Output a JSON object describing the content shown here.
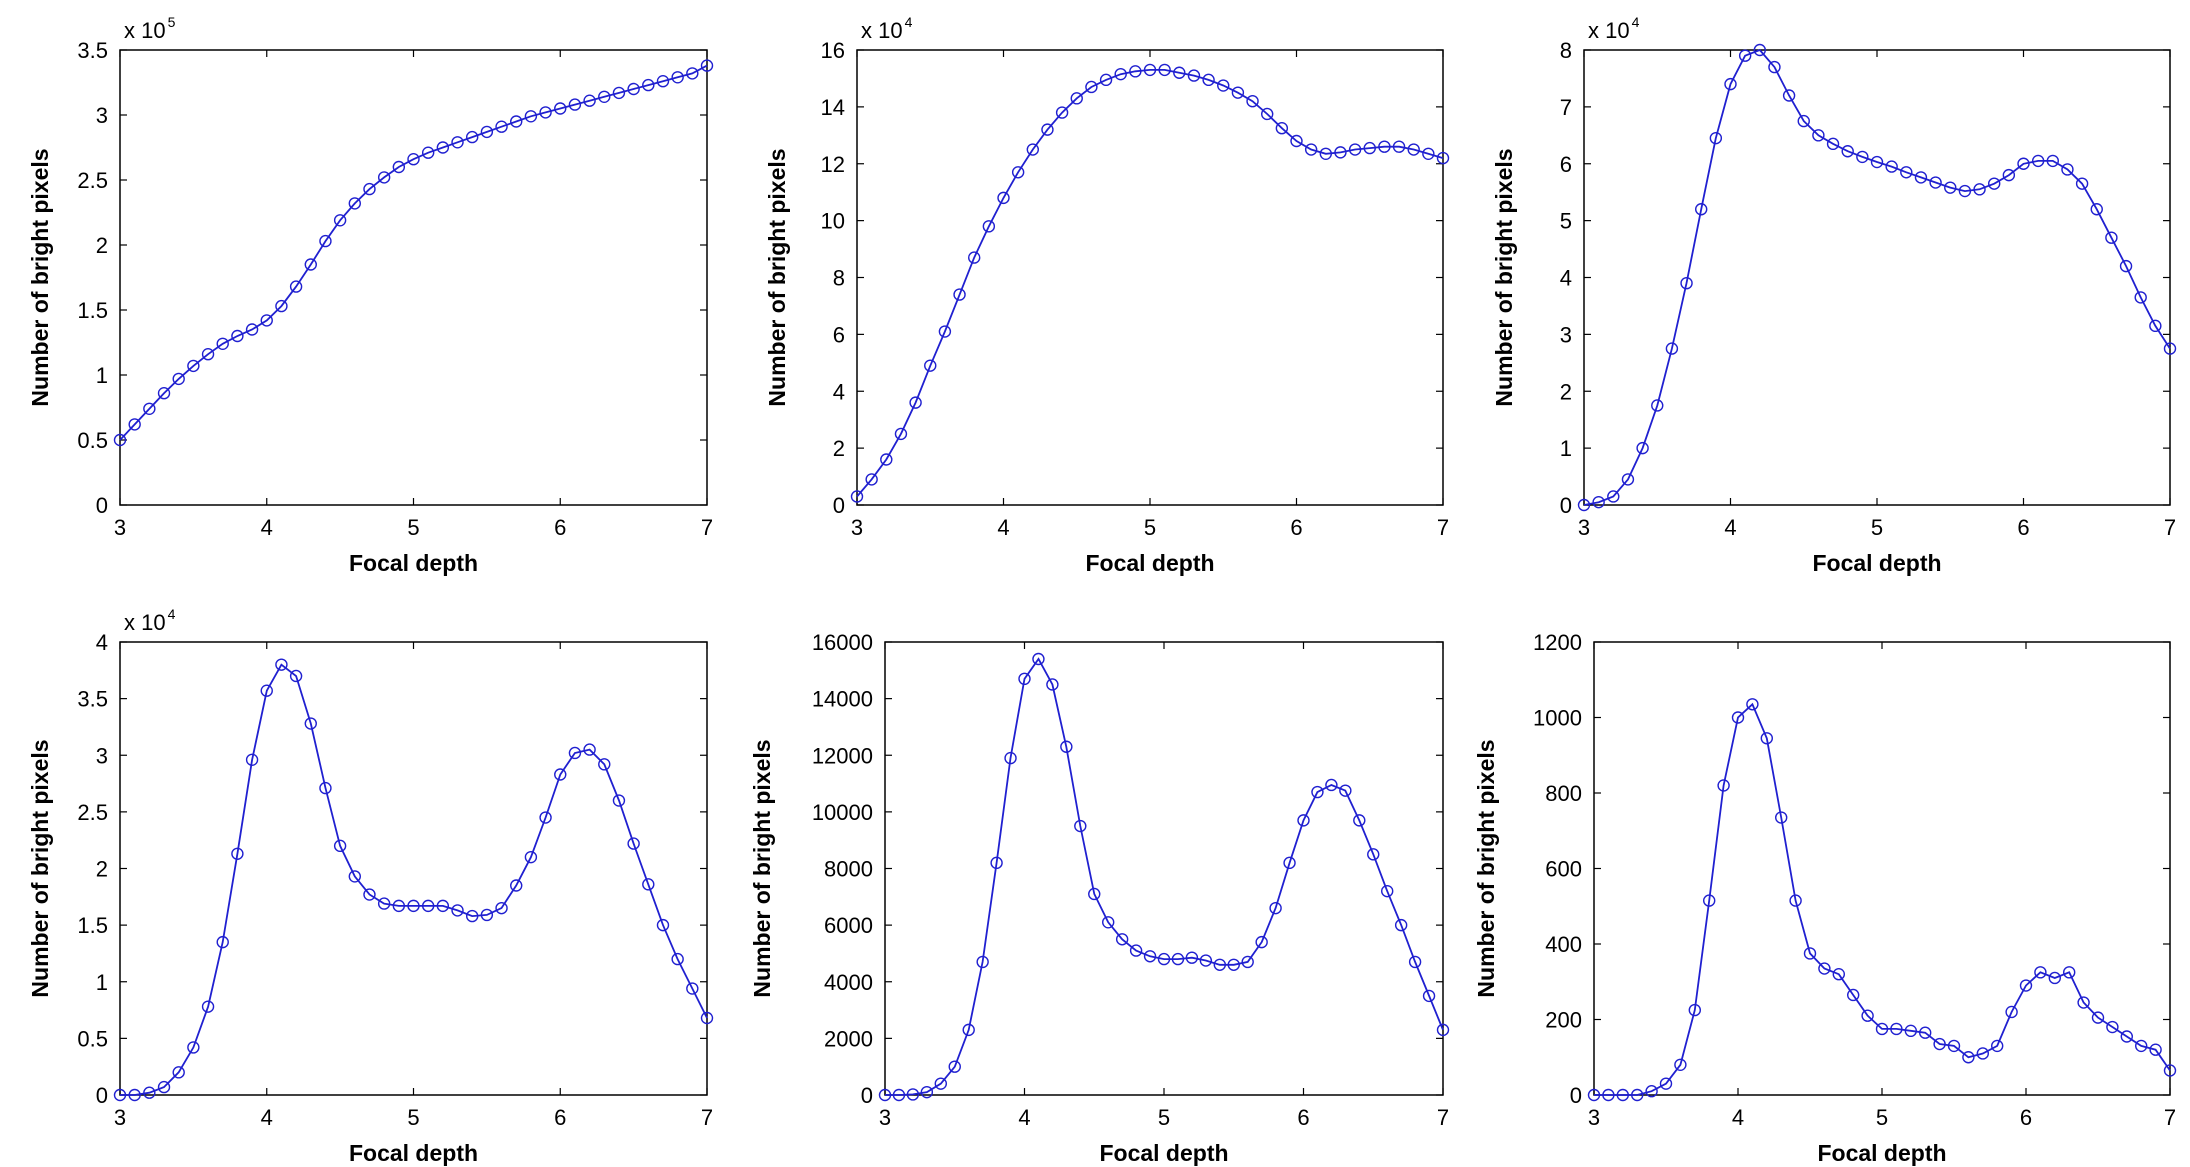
{
  "chart_data": [
    {
      "type": "line",
      "xlabel": "Focal depth",
      "ylabel": "Number of bright pixels",
      "multiplier": {
        "base": "x 10",
        "exp": "5"
      },
      "xlim": [
        3,
        7
      ],
      "ylim": [
        0,
        3.5
      ],
      "xticks": [
        "3",
        "4",
        "5",
        "6",
        "7"
      ],
      "yticks": [
        "0",
        "0.5",
        "1",
        "1.5",
        "2",
        "2.5",
        "3",
        "3.5"
      ],
      "ytick_values": [
        0,
        0.5,
        1,
        1.5,
        2,
        2.5,
        3,
        3.5
      ],
      "color": "#2020d0",
      "marker": "circle",
      "series": [
        {
          "x": [
            3.0,
            3.1,
            3.2,
            3.3,
            3.4,
            3.5,
            3.6,
            3.7,
            3.8,
            3.9,
            4.0,
            4.1,
            4.2,
            4.3,
            4.4,
            4.5,
            4.6,
            4.7,
            4.8,
            4.9,
            5.0,
            5.1,
            5.2,
            5.3,
            5.4,
            5.5,
            5.6,
            5.7,
            5.8,
            5.9,
            6.0,
            6.1,
            6.2,
            6.3,
            6.4,
            6.5,
            6.6,
            6.7,
            6.8,
            6.9,
            7.0
          ],
          "y": [
            0.5,
            0.62,
            0.74,
            0.86,
            0.97,
            1.07,
            1.16,
            1.24,
            1.3,
            1.35,
            1.42,
            1.53,
            1.68,
            1.85,
            2.03,
            2.19,
            2.32,
            2.43,
            2.52,
            2.6,
            2.66,
            2.71,
            2.75,
            2.79,
            2.83,
            2.87,
            2.91,
            2.95,
            2.99,
            3.02,
            3.05,
            3.08,
            3.11,
            3.14,
            3.17,
            3.2,
            3.23,
            3.26,
            3.29,
            3.32,
            3.38
          ]
        }
      ]
    },
    {
      "type": "line",
      "xlabel": "Focal depth",
      "ylabel": "Number of bright pixels",
      "multiplier": {
        "base": "x 10",
        "exp": "4"
      },
      "xlim": [
        3,
        7
      ],
      "ylim": [
        0,
        16
      ],
      "xticks": [
        "3",
        "4",
        "5",
        "6",
        "7"
      ],
      "yticks": [
        "0",
        "2",
        "4",
        "6",
        "8",
        "10",
        "12",
        "14",
        "16"
      ],
      "ytick_values": [
        0,
        2,
        4,
        6,
        8,
        10,
        12,
        14,
        16
      ],
      "color": "#2020d0",
      "marker": "circle",
      "series": [
        {
          "x": [
            3.0,
            3.1,
            3.2,
            3.3,
            3.4,
            3.5,
            3.6,
            3.7,
            3.8,
            3.9,
            4.0,
            4.1,
            4.2,
            4.3,
            4.4,
            4.5,
            4.6,
            4.7,
            4.8,
            4.9,
            5.0,
            5.1,
            5.2,
            5.3,
            5.4,
            5.5,
            5.6,
            5.7,
            5.8,
            5.9,
            6.0,
            6.1,
            6.2,
            6.3,
            6.4,
            6.5,
            6.6,
            6.7,
            6.8,
            6.9,
            7.0
          ],
          "y": [
            0.3,
            0.9,
            1.6,
            2.5,
            3.6,
            4.9,
            6.1,
            7.4,
            8.7,
            9.8,
            10.8,
            11.7,
            12.5,
            13.2,
            13.8,
            14.3,
            14.7,
            14.95,
            15.15,
            15.25,
            15.3,
            15.3,
            15.2,
            15.1,
            14.95,
            14.75,
            14.5,
            14.2,
            13.75,
            13.25,
            12.8,
            12.5,
            12.35,
            12.4,
            12.5,
            12.55,
            12.6,
            12.6,
            12.5,
            12.35,
            12.2
          ]
        }
      ]
    },
    {
      "type": "line",
      "xlabel": "Focal depth",
      "ylabel": "Number of bright pixels",
      "multiplier": {
        "base": "x 10",
        "exp": "4"
      },
      "xlim": [
        3,
        7
      ],
      "ylim": [
        0,
        8
      ],
      "xticks": [
        "3",
        "4",
        "5",
        "6",
        "7"
      ],
      "yticks": [
        "0",
        "1",
        "2",
        "3",
        "4",
        "5",
        "6",
        "7",
        "8"
      ],
      "ytick_values": [
        0,
        1,
        2,
        3,
        4,
        5,
        6,
        7,
        8
      ],
      "color": "#2020d0",
      "marker": "circle",
      "series": [
        {
          "x": [
            3.0,
            3.1,
            3.2,
            3.3,
            3.4,
            3.5,
            3.6,
            3.7,
            3.8,
            3.9,
            4.0,
            4.1,
            4.2,
            4.3,
            4.4,
            4.5,
            4.6,
            4.7,
            4.8,
            4.9,
            5.0,
            5.1,
            5.2,
            5.3,
            5.4,
            5.5,
            5.6,
            5.7,
            5.8,
            5.9,
            6.0,
            6.1,
            6.2,
            6.3,
            6.4,
            6.5,
            6.6,
            6.7,
            6.8,
            6.9,
            7.0
          ],
          "y": [
            0.0,
            0.05,
            0.15,
            0.45,
            1.0,
            1.75,
            2.75,
            3.9,
            5.2,
            6.45,
            7.4,
            7.9,
            8.0,
            7.7,
            7.2,
            6.75,
            6.5,
            6.35,
            6.22,
            6.12,
            6.03,
            5.95,
            5.85,
            5.76,
            5.67,
            5.58,
            5.52,
            5.55,
            5.65,
            5.8,
            6.0,
            6.05,
            6.05,
            5.9,
            5.65,
            5.2,
            4.7,
            4.2,
            3.65,
            3.15,
            2.75
          ]
        }
      ]
    },
    {
      "type": "line",
      "xlabel": "Focal depth",
      "ylabel": "Number of bright pixels",
      "multiplier": {
        "base": "x 10",
        "exp": "4"
      },
      "xlim": [
        3,
        7
      ],
      "ylim": [
        0,
        4
      ],
      "xticks": [
        "3",
        "4",
        "5",
        "6",
        "7"
      ],
      "yticks": [
        "0",
        "0.5",
        "1",
        "1.5",
        "2",
        "2.5",
        "3",
        "3.5",
        "4"
      ],
      "ytick_values": [
        0,
        0.5,
        1,
        1.5,
        2,
        2.5,
        3,
        3.5,
        4
      ],
      "color": "#2020d0",
      "marker": "circle",
      "series": [
        {
          "x": [
            3.0,
            3.1,
            3.2,
            3.3,
            3.4,
            3.5,
            3.6,
            3.7,
            3.8,
            3.9,
            4.0,
            4.1,
            4.2,
            4.3,
            4.4,
            4.5,
            4.6,
            4.7,
            4.8,
            4.9,
            5.0,
            5.1,
            5.2,
            5.3,
            5.4,
            5.5,
            5.6,
            5.7,
            5.8,
            5.9,
            6.0,
            6.1,
            6.2,
            6.3,
            6.4,
            6.5,
            6.6,
            6.7,
            6.8,
            6.9,
            7.0
          ],
          "y": [
            0.0,
            0.0,
            0.02,
            0.07,
            0.2,
            0.42,
            0.78,
            1.35,
            2.13,
            2.96,
            3.57,
            3.8,
            3.7,
            3.28,
            2.71,
            2.2,
            1.93,
            1.77,
            1.69,
            1.67,
            1.67,
            1.67,
            1.67,
            1.63,
            1.58,
            1.59,
            1.65,
            1.85,
            2.1,
            2.45,
            2.83,
            3.02,
            3.05,
            2.92,
            2.6,
            2.22,
            1.86,
            1.5,
            1.2,
            0.94,
            0.68
          ]
        }
      ]
    },
    {
      "type": "line",
      "xlabel": "Focal depth",
      "ylabel": "Number of bright pixels",
      "xlim": [
        3,
        7
      ],
      "ylim": [
        0,
        16000
      ],
      "xticks": [
        "3",
        "4",
        "5",
        "6",
        "7"
      ],
      "yticks": [
        "0",
        "2000",
        "4000",
        "6000",
        "8000",
        "10000",
        "12000",
        "14000",
        "16000"
      ],
      "ytick_values": [
        0,
        2000,
        4000,
        6000,
        8000,
        10000,
        12000,
        14000,
        16000
      ],
      "color": "#2020d0",
      "marker": "circle",
      "series": [
        {
          "x": [
            3.0,
            3.1,
            3.2,
            3.3,
            3.4,
            3.5,
            3.6,
            3.7,
            3.8,
            3.9,
            4.0,
            4.1,
            4.2,
            4.3,
            4.4,
            4.5,
            4.6,
            4.7,
            4.8,
            4.9,
            5.0,
            5.1,
            5.2,
            5.3,
            5.4,
            5.5,
            5.6,
            5.7,
            5.8,
            5.9,
            6.0,
            6.1,
            6.2,
            6.3,
            6.4,
            6.5,
            6.6,
            6.7,
            6.8,
            6.9,
            7.0
          ],
          "y": [
            0,
            0,
            20,
            100,
            400,
            1000,
            2300,
            4700,
            8200,
            11900,
            14700,
            15400,
            14500,
            12300,
            9500,
            7100,
            6100,
            5500,
            5100,
            4900,
            4800,
            4800,
            4850,
            4750,
            4600,
            4600,
            4700,
            5400,
            6600,
            8200,
            9700,
            10700,
            10950,
            10750,
            9700,
            8500,
            7200,
            6000,
            4700,
            3500,
            2300
          ]
        }
      ]
    },
    {
      "type": "line",
      "xlabel": "Focal depth",
      "ylabel": "Number of bright pixels",
      "xlim": [
        3,
        7
      ],
      "ylim": [
        0,
        1200
      ],
      "xticks": [
        "3",
        "4",
        "5",
        "6",
        "7"
      ],
      "yticks": [
        "0",
        "200",
        "400",
        "600",
        "800",
        "1000",
        "1200"
      ],
      "ytick_values": [
        0,
        200,
        400,
        600,
        800,
        1000,
        1200
      ],
      "color": "#2020d0",
      "marker": "circle",
      "series": [
        {
          "x": [
            3.0,
            3.1,
            3.2,
            3.3,
            3.4,
            3.5,
            3.6,
            3.7,
            3.8,
            3.9,
            4.0,
            4.1,
            4.2,
            4.3,
            4.4,
            4.5,
            4.6,
            4.7,
            4.8,
            4.9,
            5.0,
            5.1,
            5.2,
            5.3,
            5.4,
            5.5,
            5.6,
            5.7,
            5.8,
            5.9,
            6.0,
            6.1,
            6.2,
            6.3,
            6.4,
            6.5,
            6.6,
            6.7,
            6.8,
            6.9,
            7.0
          ],
          "y": [
            0,
            0,
            0,
            0,
            10,
            30,
            80,
            225,
            515,
            820,
            1000,
            1035,
            945,
            735,
            515,
            375,
            335,
            320,
            265,
            210,
            175,
            175,
            170,
            165,
            135,
            130,
            100,
            110,
            130,
            220,
            290,
            325,
            310,
            325,
            245,
            205,
            180,
            155,
            130,
            120,
            65
          ]
        }
      ]
    }
  ]
}
